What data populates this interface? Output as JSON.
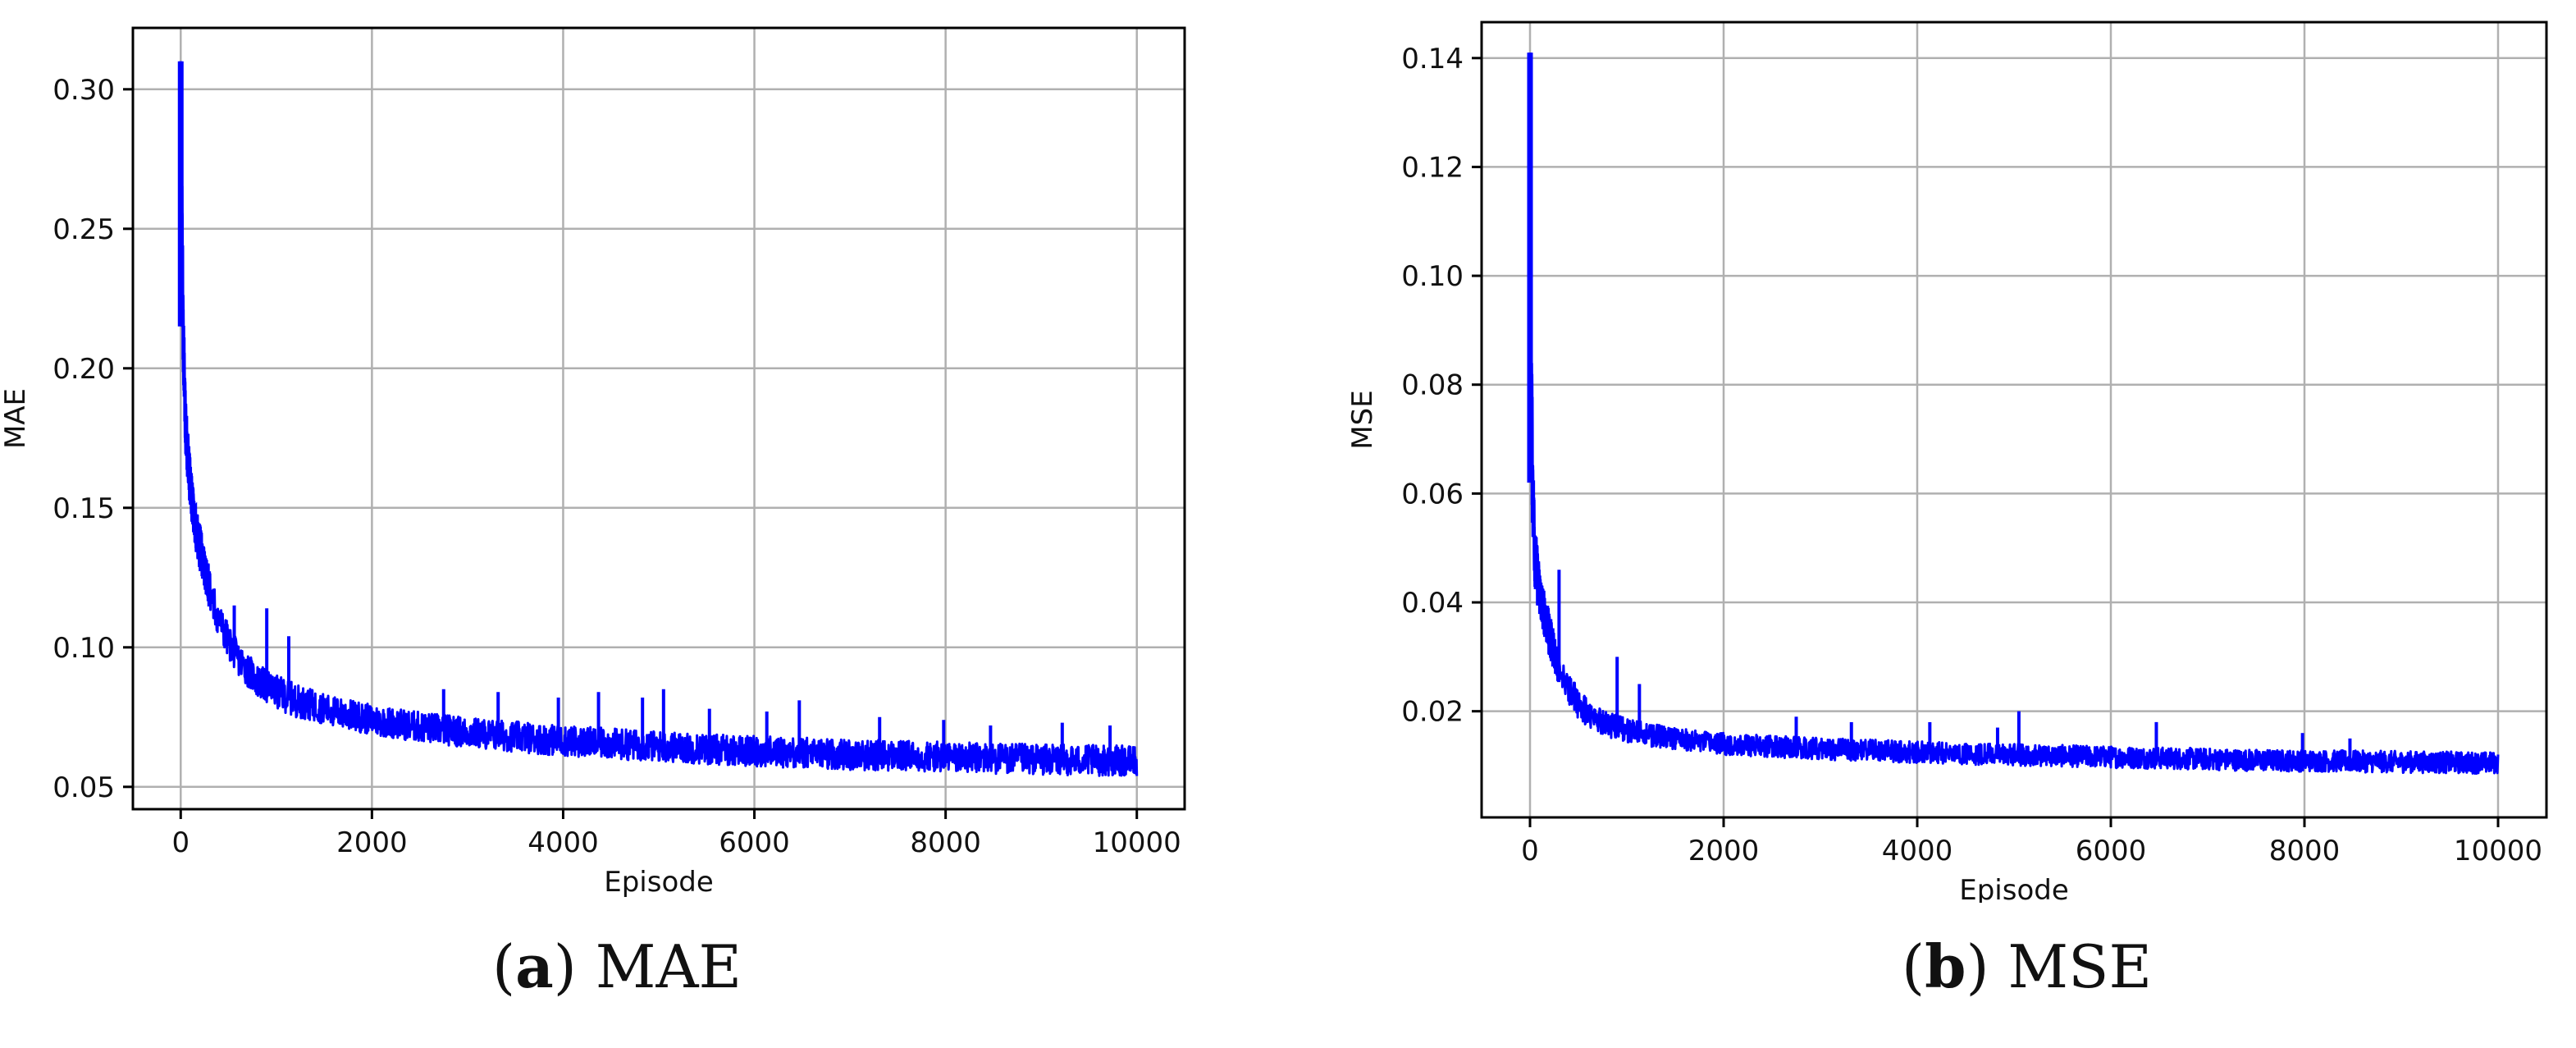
{
  "captions": [
    {
      "paren_open": "(",
      "letter": "a",
      "paren_close": ")",
      "text": " MAE"
    },
    {
      "paren_open": "(",
      "letter": "b",
      "paren_close": ")",
      "text": " MSE"
    }
  ],
  "colors": {
    "line": "#0000ff",
    "grid": "#b0b0b0",
    "axes": "#000000"
  },
  "chart_data": [
    {
      "type": "line",
      "title": "",
      "xlabel": "Episode",
      "ylabel": "MAE",
      "xlim": [
        -500,
        10500
      ],
      "ylim": [
        0.042,
        0.322
      ],
      "xticks": [
        0,
        2000,
        4000,
        6000,
        8000,
        10000
      ],
      "xtick_labels": [
        "0",
        "2000",
        "4000",
        "6000",
        "8000",
        "10000"
      ],
      "yticks": [
        0.05,
        0.1,
        0.15,
        0.2,
        0.25,
        0.3
      ],
      "ytick_labels": [
        "0.05",
        "0.10",
        "0.15",
        "0.20",
        "0.25",
        "0.30"
      ],
      "grid": true,
      "series": [
        {
          "color": "#0000ff",
          "x": [
            0,
            10,
            25,
            50,
            80,
            120,
            160,
            200,
            250,
            300,
            350,
            400,
            500,
            600,
            700,
            800,
            900,
            1000,
            1200,
            1400,
            1600,
            1800,
            2000,
            2500,
            3000,
            3500,
            4000,
            4500,
            5000,
            5500,
            6000,
            6500,
            7000,
            7500,
            8000,
            8500,
            9000,
            9500,
            10000
          ],
          "y": [
            0.31,
            0.26,
            0.215,
            0.18,
            0.165,
            0.152,
            0.143,
            0.136,
            0.128,
            0.121,
            0.115,
            0.11,
            0.102,
            0.096,
            0.092,
            0.088,
            0.086,
            0.084,
            0.081,
            0.079,
            0.077,
            0.0755,
            0.074,
            0.0715,
            0.0695,
            0.068,
            0.0665,
            0.0655,
            0.0645,
            0.0635,
            0.0628,
            0.0622,
            0.0616,
            0.0611,
            0.0606,
            0.0602,
            0.0598,
            0.0595,
            0.0592
          ],
          "noise_amplitude": [
            0.0,
            0.015,
            0.012,
            0.01,
            0.009,
            0.008,
            0.008,
            0.008,
            0.007,
            0.007,
            0.007,
            0.007,
            0.006,
            0.006,
            0.006,
            0.006,
            0.006,
            0.006,
            0.006,
            0.0055,
            0.0055,
            0.0055,
            0.0055,
            0.0055,
            0.0055,
            0.0055,
            0.0055,
            0.0055,
            0.0055,
            0.0055,
            0.0055,
            0.0055,
            0.0055,
            0.0055,
            0.0055,
            0.0055,
            0.0055,
            0.0055,
            0.0055
          ],
          "spikes": [
            [
              560,
              0.115
            ],
            [
              900,
              0.114
            ],
            [
              1130,
              0.104
            ],
            [
              2750,
              0.085
            ],
            [
              3320,
              0.084
            ],
            [
              3950,
              0.082
            ],
            [
              4370,
              0.084
            ],
            [
              4830,
              0.082
            ],
            [
              5050,
              0.085
            ],
            [
              5530,
              0.078
            ],
            [
              6130,
              0.077
            ],
            [
              6470,
              0.081
            ],
            [
              7310,
              0.075
            ],
            [
              7980,
              0.074
            ],
            [
              8470,
              0.072
            ],
            [
              9220,
              0.073
            ],
            [
              9720,
              0.072
            ]
          ]
        }
      ]
    },
    {
      "type": "line",
      "title": "",
      "xlabel": "Episode",
      "ylabel": "MSE",
      "xlim": [
        -500,
        10500
      ],
      "ylim": [
        0.0005,
        0.1466
      ],
      "xticks": [
        0,
        2000,
        4000,
        6000,
        8000,
        10000
      ],
      "xtick_labels": [
        "0",
        "2000",
        "4000",
        "6000",
        "8000",
        "10000"
      ],
      "yticks": [
        0.02,
        0.04,
        0.06,
        0.08,
        0.1,
        0.12,
        0.14
      ],
      "ytick_labels": [
        "0.02",
        "0.04",
        "0.06",
        "0.08",
        "0.10",
        "0.12",
        "0.14"
      ],
      "grid": true,
      "series": [
        {
          "color": "#0000ff",
          "x": [
            0,
            10,
            25,
            50,
            80,
            120,
            160,
            200,
            250,
            300,
            350,
            400,
            500,
            600,
            700,
            800,
            900,
            1000,
            1200,
            1400,
            1600,
            1800,
            2000,
            2500,
            3000,
            3500,
            4000,
            4500,
            5000,
            5500,
            6000,
            6500,
            7000,
            7500,
            8000,
            8500,
            9000,
            9500,
            10000
          ],
          "y": [
            0.141,
            0.09,
            0.062,
            0.049,
            0.044,
            0.04,
            0.037,
            0.034,
            0.031,
            0.028,
            0.026,
            0.024,
            0.0215,
            0.0195,
            0.0185,
            0.0178,
            0.017,
            0.0165,
            0.0158,
            0.0152,
            0.0147,
            0.0143,
            0.014,
            0.0135,
            0.0131,
            0.0128,
            0.0125,
            0.0122,
            0.012,
            0.0118,
            0.0116,
            0.0114,
            0.0112,
            0.011,
            0.0109,
            0.0108,
            0.0107,
            0.0106,
            0.0105
          ],
          "noise_amplitude": [
            0.0,
            0.01,
            0.008,
            0.006,
            0.005,
            0.004,
            0.004,
            0.004,
            0.0035,
            0.003,
            0.003,
            0.003,
            0.0028,
            0.0026,
            0.0024,
            0.0024,
            0.0024,
            0.0022,
            0.0022,
            0.002,
            0.002,
            0.002,
            0.002,
            0.002,
            0.002,
            0.002,
            0.002,
            0.002,
            0.002,
            0.002,
            0.002,
            0.002,
            0.002,
            0.002,
            0.002,
            0.002,
            0.002,
            0.002,
            0.002
          ],
          "spikes": [
            [
              300,
              0.046
            ],
            [
              900,
              0.03
            ],
            [
              1130,
              0.025
            ],
            [
              2750,
              0.019
            ],
            [
              3320,
              0.018
            ],
            [
              4130,
              0.018
            ],
            [
              4830,
              0.017
            ],
            [
              5050,
              0.02
            ],
            [
              6470,
              0.018
            ],
            [
              7980,
              0.016
            ],
            [
              8470,
              0.015
            ]
          ]
        }
      ]
    }
  ]
}
